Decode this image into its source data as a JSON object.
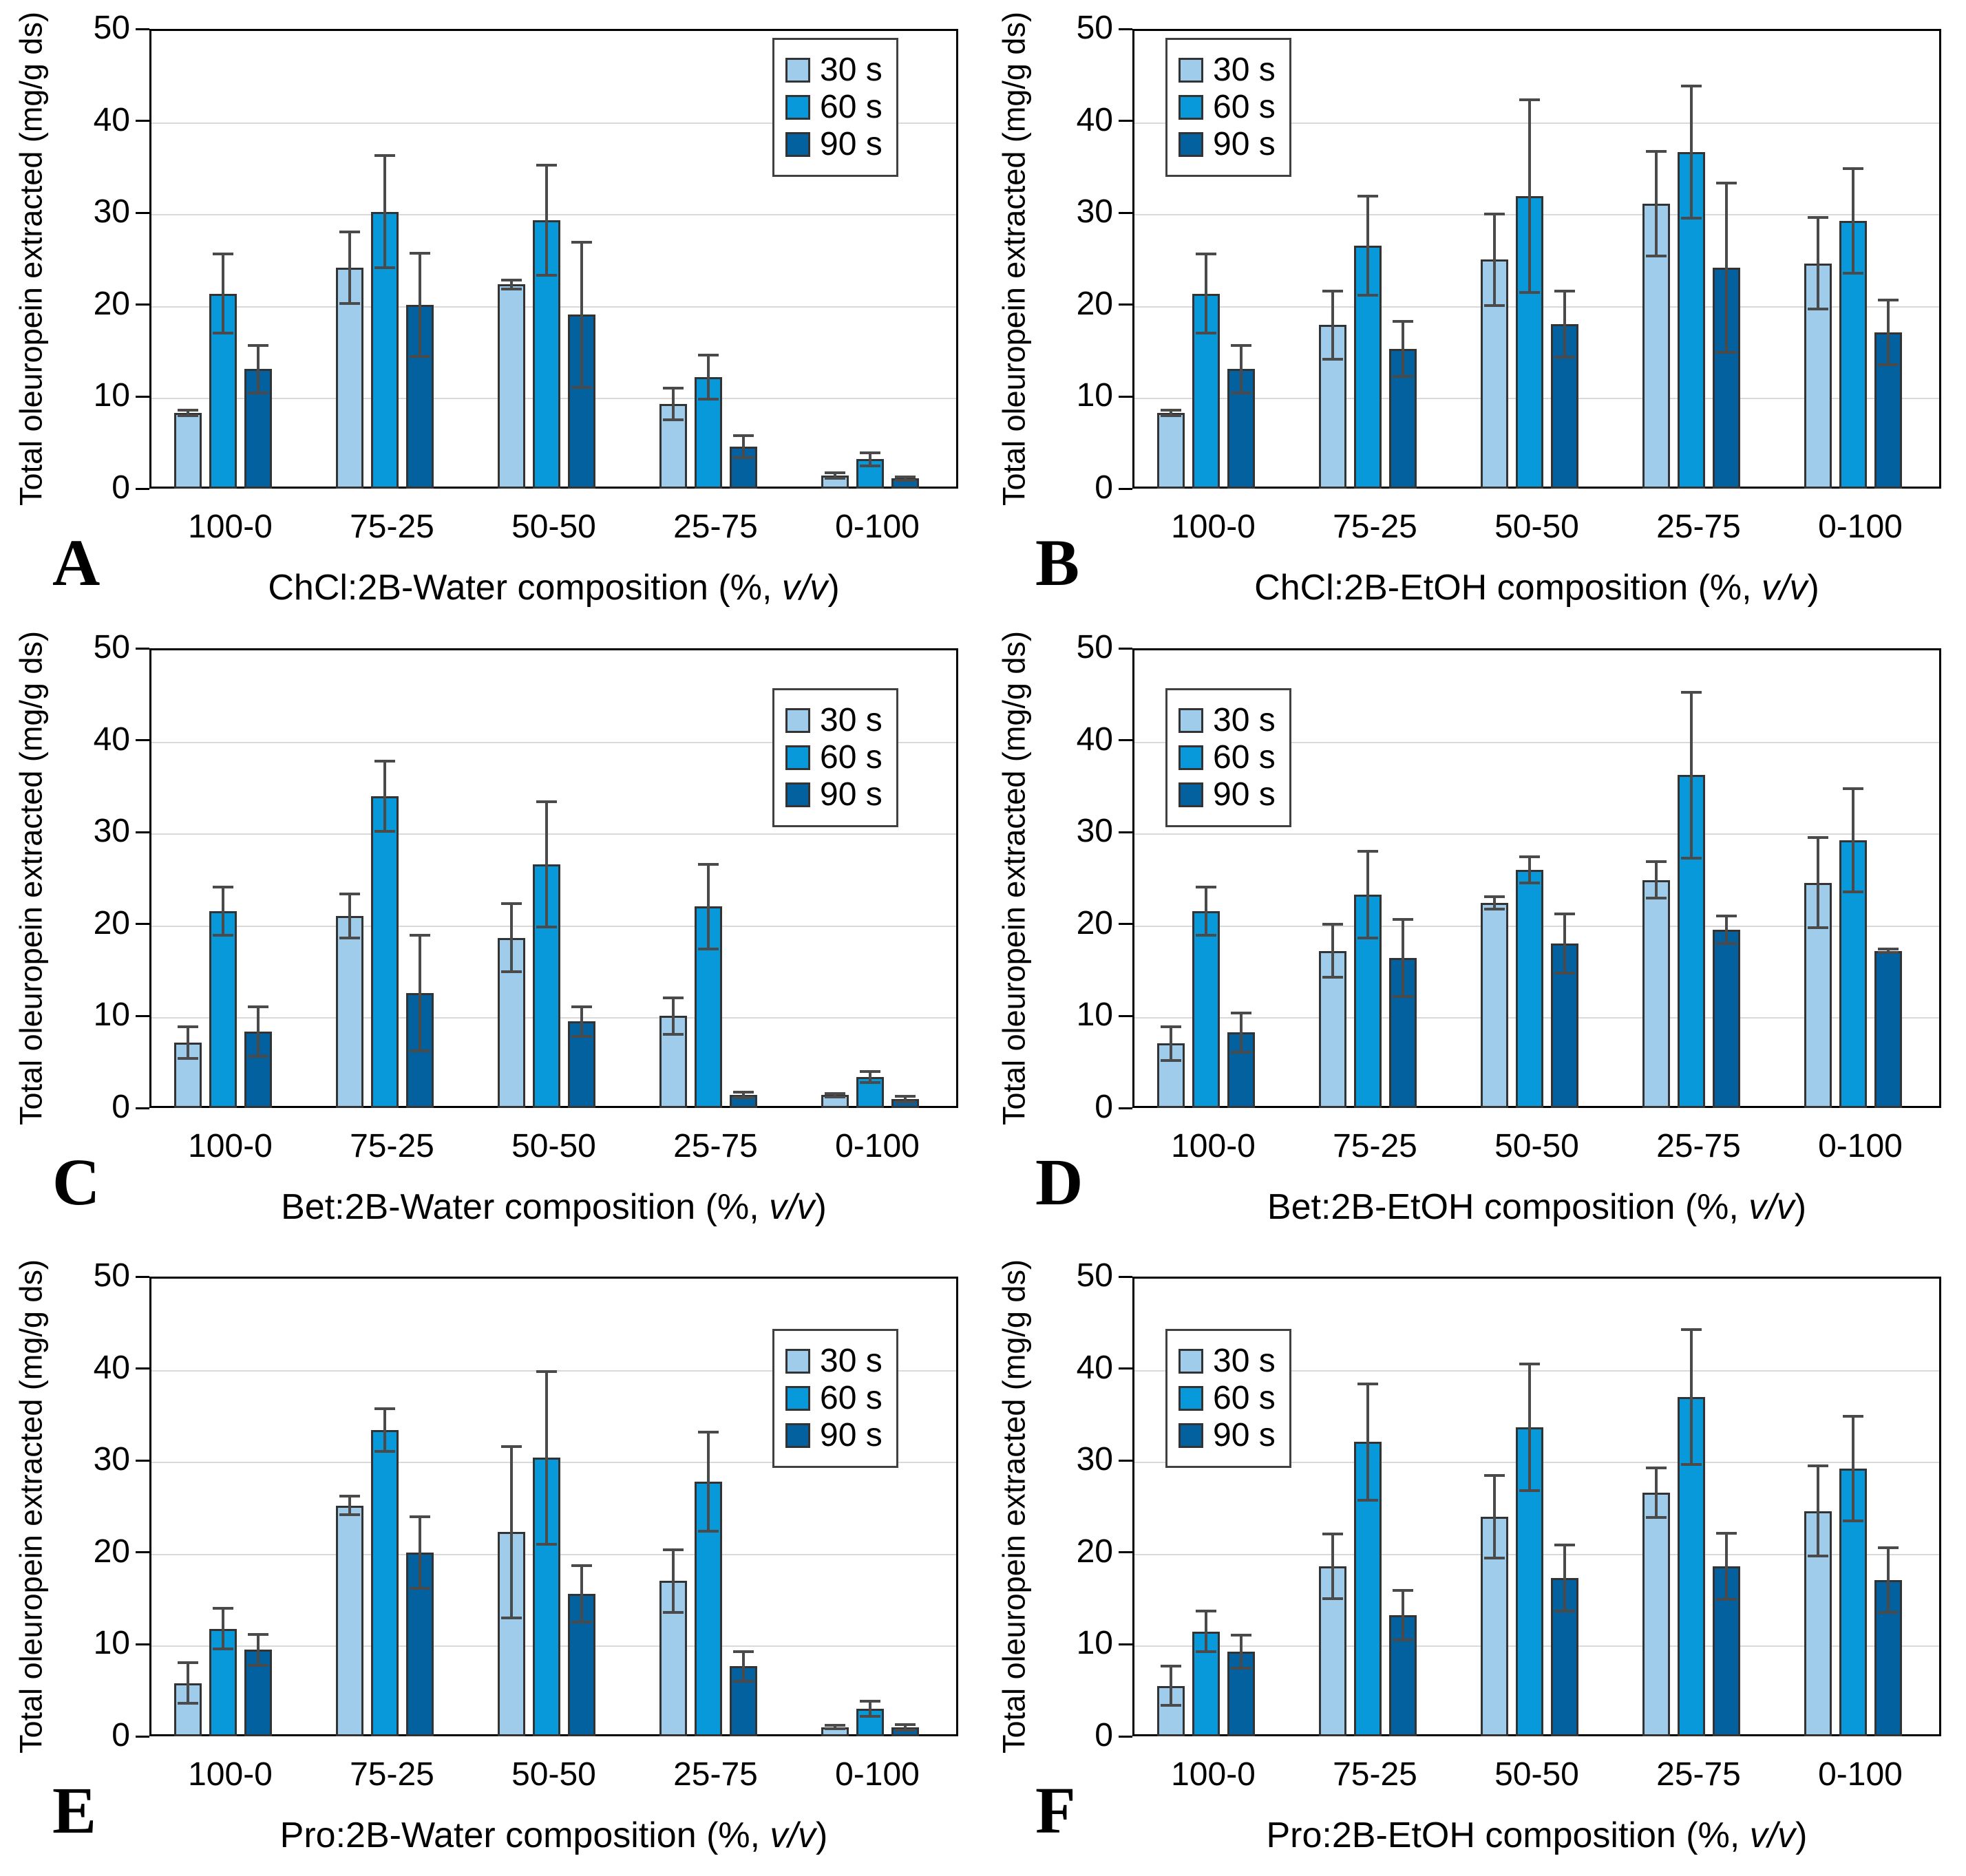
{
  "figure": {
    "ylabel": "Total oleuropein extracted (mg/g ds)",
    "legend_labels": [
      "30 s",
      "60 s",
      "90 s"
    ],
    "yticks": [
      0,
      10,
      20,
      30,
      40,
      50
    ],
    "ylim": [
      0,
      50
    ],
    "grid_values": [
      10,
      20,
      30,
      40
    ],
    "xlabel_unit_pre": "(%, ",
    "xlabel_unit_italic": "v/v",
    "xlabel_unit_post": ")",
    "series_colors": [
      "#A0CCEC",
      "#0899DB",
      "#02619E"
    ],
    "error_bar_color": "#4A4A4A",
    "outline_color": "#333333",
    "gridline_color": "#D9D9D9"
  },
  "chart_data": [
    {
      "type": "bar",
      "panel_letter": "A",
      "xlabel": "ChCl:2B-Water composition",
      "legend_position": "top-right",
      "categories": [
        "100-0",
        "75-25",
        "50-50",
        "25-75",
        "0-100"
      ],
      "series": [
        {
          "name": "30 s",
          "values": [
            8.2,
            24.0,
            22.2,
            9.2,
            1.4
          ],
          "errors": [
            0.3,
            3.9,
            0.5,
            1.7,
            0.3
          ]
        },
        {
          "name": "60 s",
          "values": [
            21.2,
            30.1,
            29.2,
            12.1,
            3.2
          ],
          "errors": [
            4.3,
            6.1,
            6.0,
            2.4,
            0.7
          ]
        },
        {
          "name": "90 s",
          "values": [
            13.0,
            20.0,
            18.9,
            4.6,
            1.1
          ],
          "errors": [
            2.6,
            5.6,
            7.9,
            1.2,
            0.2
          ]
        }
      ]
    },
    {
      "type": "bar",
      "panel_letter": "B",
      "xlabel": "ChCl:2B-EtOH composition",
      "legend_position": "top-left",
      "categories": [
        "100-0",
        "75-25",
        "50-50",
        "25-75",
        "0-100"
      ],
      "series": [
        {
          "name": "30 s",
          "values": [
            8.2,
            17.8,
            24.9,
            31.0,
            24.5
          ],
          "errors": [
            0.3,
            3.7,
            5.0,
            5.7,
            5.0
          ]
        },
        {
          "name": "60 s",
          "values": [
            21.2,
            26.4,
            31.8,
            36.6,
            29.1
          ],
          "errors": [
            4.3,
            5.4,
            10.5,
            7.2,
            5.7
          ]
        },
        {
          "name": "90 s",
          "values": [
            13.0,
            15.2,
            17.9,
            24.0,
            17.0
          ],
          "errors": [
            2.6,
            3.0,
            3.6,
            9.2,
            3.5
          ]
        }
      ]
    },
    {
      "type": "bar",
      "panel_letter": "C",
      "xlabel": "Bet:2B-Water composition",
      "legend_position": "top-right",
      "categories": [
        "100-0",
        "75-25",
        "50-50",
        "25-75",
        "0-100"
      ],
      "series": [
        {
          "name": "30 s",
          "values": [
            7.1,
            20.9,
            18.5,
            10.0,
            1.4
          ],
          "errors": [
            1.7,
            2.4,
            3.7,
            2.0,
            0.2
          ]
        },
        {
          "name": "60 s",
          "values": [
            21.4,
            33.9,
            26.5,
            21.9,
            3.4
          ],
          "errors": [
            2.6,
            3.8,
            6.8,
            4.6,
            0.6
          ]
        },
        {
          "name": "90 s",
          "values": [
            8.3,
            12.5,
            9.4,
            1.4,
            1.0
          ],
          "errors": [
            2.7,
            6.3,
            1.6,
            0.3,
            0.3
          ]
        }
      ]
    },
    {
      "type": "bar",
      "panel_letter": "D",
      "xlabel": "Bet:2B-EtOH composition",
      "legend_position": "top-left",
      "categories": [
        "100-0",
        "75-25",
        "50-50",
        "25-75",
        "0-100"
      ],
      "series": [
        {
          "name": "30 s",
          "values": [
            7.0,
            17.1,
            22.3,
            24.8,
            24.5
          ],
          "errors": [
            1.8,
            2.9,
            0.7,
            2.0,
            4.9
          ]
        },
        {
          "name": "60 s",
          "values": [
            21.4,
            23.2,
            25.9,
            36.2,
            29.1
          ],
          "errors": [
            2.6,
            4.7,
            1.4,
            9.0,
            5.6
          ]
        },
        {
          "name": "90 s",
          "values": [
            8.2,
            16.3,
            17.9,
            19.4,
            17.1
          ],
          "errors": [
            2.1,
            4.2,
            3.2,
            1.5,
            0.2
          ]
        }
      ]
    },
    {
      "type": "bar",
      "panel_letter": "E",
      "xlabel": "Pro:2B-Water composition",
      "legend_position": "top-right",
      "categories": [
        "100-0",
        "75-25",
        "50-50",
        "25-75",
        "0-100"
      ],
      "series": [
        {
          "name": "30 s",
          "values": [
            5.8,
            25.1,
            22.2,
            16.9,
            1.0
          ],
          "errors": [
            2.2,
            1.0,
            9.3,
            3.4,
            0.2
          ]
        },
        {
          "name": "60 s",
          "values": [
            11.7,
            33.3,
            30.3,
            27.7,
            3.0
          ],
          "errors": [
            2.2,
            2.3,
            9.4,
            5.4,
            0.8
          ]
        },
        {
          "name": "90 s",
          "values": [
            9.4,
            20.0,
            15.5,
            7.6,
            1.0
          ],
          "errors": [
            1.7,
            3.9,
            3.1,
            1.6,
            0.3
          ]
        }
      ]
    },
    {
      "type": "bar",
      "panel_letter": "F",
      "xlabel": "Pro:2B-EtOH composition",
      "legend_position": "top-left",
      "categories": [
        "100-0",
        "75-25",
        "50-50",
        "25-75",
        "0-100"
      ],
      "series": [
        {
          "name": "30 s",
          "values": [
            5.5,
            18.5,
            23.9,
            26.5,
            24.5
          ],
          "errors": [
            2.1,
            3.5,
            4.5,
            2.7,
            4.9
          ]
        },
        {
          "name": "60 s",
          "values": [
            11.4,
            32.0,
            33.6,
            36.9,
            29.1
          ],
          "errors": [
            2.2,
            6.3,
            6.9,
            7.3,
            5.7
          ]
        },
        {
          "name": "90 s",
          "values": [
            9.2,
            13.2,
            17.2,
            18.5,
            17.0
          ],
          "errors": [
            1.8,
            2.7,
            3.6,
            3.6,
            3.5
          ]
        }
      ]
    }
  ]
}
